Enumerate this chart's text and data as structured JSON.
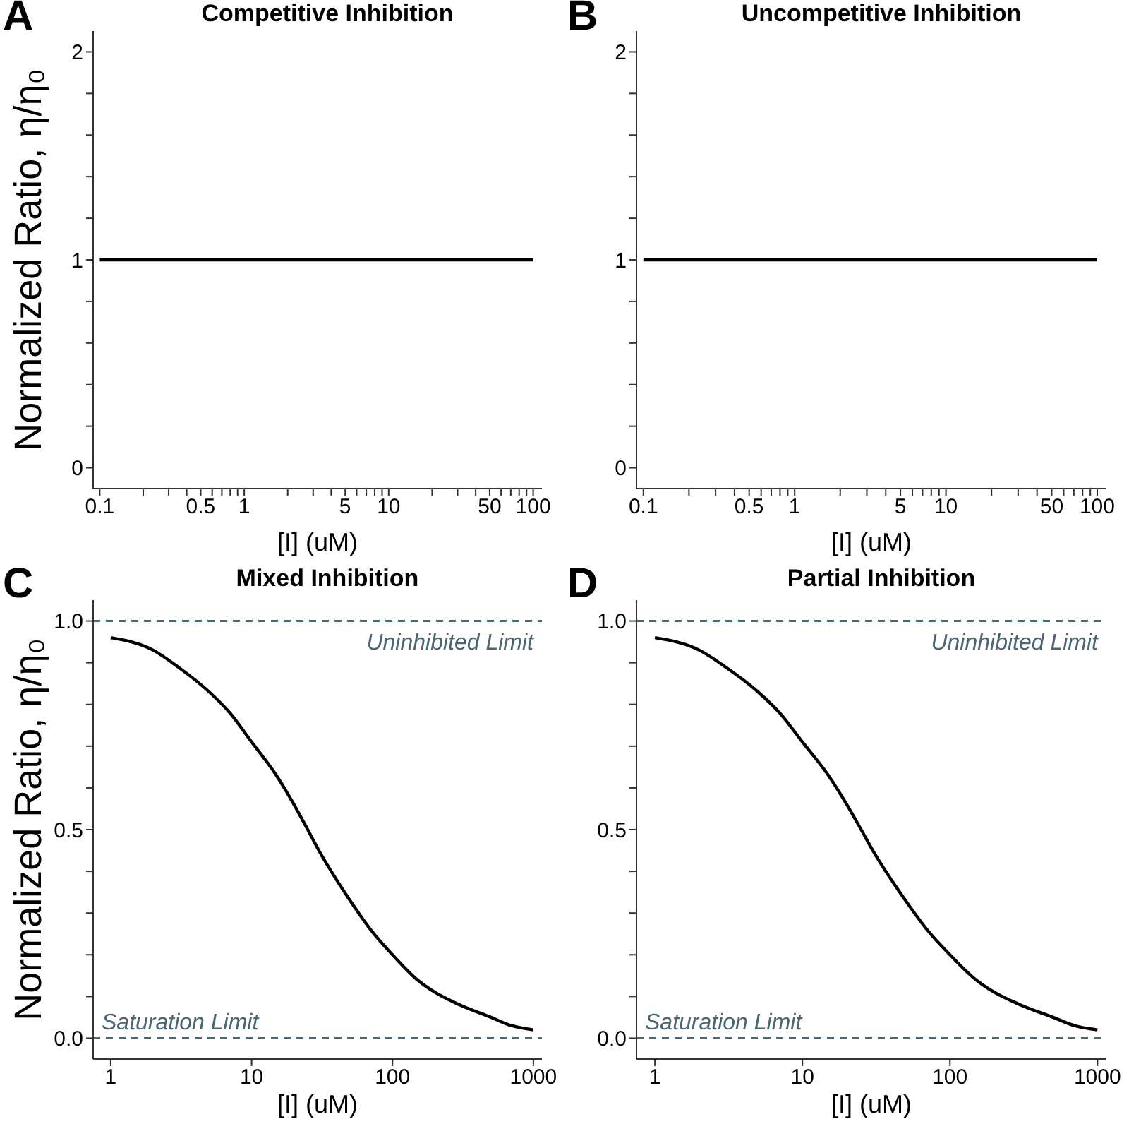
{
  "chart_data": [
    {
      "type": "line",
      "title": "Competitive Inhibition",
      "ylabel": "Normalized Ratio, η/η₀",
      "xlabel": "[I] (uM)",
      "annotations": [
        "A"
      ],
      "log": "x",
      "xlim": [
        0.09,
        115
      ],
      "xticks": [
        0.1,
        {
          "value": 0.2,
          "label": null
        },
        {
          "value": 0.3,
          "label": null
        },
        {
          "value": 0.4,
          "label": null
        },
        0.5,
        {
          "value": 0.6,
          "label": null
        },
        {
          "value": 0.7,
          "label": null
        },
        {
          "value": 0.8,
          "label": null
        },
        {
          "value": 0.9,
          "label": null
        },
        1,
        {
          "value": 2,
          "label": null
        },
        {
          "value": 3,
          "label": null
        },
        {
          "value": 4,
          "label": null
        },
        5,
        {
          "value": 6,
          "label": null
        },
        {
          "value": 7,
          "label": null
        },
        {
          "value": 8,
          "label": null
        },
        {
          "value": 9,
          "label": null
        },
        10,
        {
          "value": 20,
          "label": null
        },
        {
          "value": 30,
          "label": null
        },
        {
          "value": 40,
          "label": null
        },
        50,
        {
          "value": 60,
          "label": null
        },
        {
          "value": 70,
          "label": null
        },
        {
          "value": 80,
          "label": null
        },
        {
          "value": 90,
          "label": null
        },
        100
      ],
      "ylim": [
        -0.1,
        2.1
      ],
      "yticks": [
        0,
        {
          "value": 0.2,
          "label": null
        },
        {
          "value": 0.4,
          "label": null
        },
        {
          "value": 0.6,
          "label": null
        },
        {
          "value": 0.8,
          "label": null
        },
        1,
        {
          "value": 1.2,
          "label": null
        },
        {
          "value": 1.4,
          "label": null
        },
        {
          "value": 1.6,
          "label": null
        },
        {
          "value": 1.8,
          "label": null
        },
        2
      ],
      "series": [
        {
          "color": "#000000",
          "x": [
            0.1,
            1,
            10,
            100
          ],
          "values": [
            1,
            1,
            1,
            1
          ]
        }
      ]
    },
    {
      "type": "line",
      "title": "Uncompetitive Inhibition",
      "xlabel": "[I] (uM)",
      "annotations": [
        "B"
      ],
      "log": "x",
      "xlim": [
        0.09,
        115
      ],
      "xticks": [
        0.1,
        {
          "value": 0.2,
          "label": null
        },
        {
          "value": 0.3,
          "label": null
        },
        {
          "value": 0.4,
          "label": null
        },
        0.5,
        {
          "value": 0.6,
          "label": null
        },
        {
          "value": 0.7,
          "label": null
        },
        {
          "value": 0.8,
          "label": null
        },
        {
          "value": 0.9,
          "label": null
        },
        1,
        {
          "value": 2,
          "label": null
        },
        {
          "value": 3,
          "label": null
        },
        {
          "value": 4,
          "label": null
        },
        5,
        {
          "value": 6,
          "label": null
        },
        {
          "value": 7,
          "label": null
        },
        {
          "value": 8,
          "label": null
        },
        {
          "value": 9,
          "label": null
        },
        10,
        {
          "value": 20,
          "label": null
        },
        {
          "value": 30,
          "label": null
        },
        {
          "value": 40,
          "label": null
        },
        50,
        {
          "value": 60,
          "label": null
        },
        {
          "value": 70,
          "label": null
        },
        {
          "value": 80,
          "label": null
        },
        {
          "value": 90,
          "label": null
        },
        100
      ],
      "ylim": [
        -0.1,
        2.1
      ],
      "yticks": [
        0,
        {
          "value": 0.2,
          "label": null
        },
        {
          "value": 0.4,
          "label": null
        },
        {
          "value": 0.6,
          "label": null
        },
        {
          "value": 0.8,
          "label": null
        },
        1,
        {
          "value": 1.2,
          "label": null
        },
        {
          "value": 1.4,
          "label": null
        },
        {
          "value": 1.6,
          "label": null
        },
        {
          "value": 1.8,
          "label": null
        },
        2
      ],
      "series": [
        {
          "color": "#000000",
          "x": [
            0.1,
            1,
            10,
            100
          ],
          "values": [
            1,
            1,
            1,
            1
          ]
        }
      ]
    },
    {
      "type": "line",
      "title": "Mixed Inhibition",
      "ylabel": "Normalized Ratio, η/η₀",
      "xlabel": "[I] (uM)",
      "annotations": [
        "C"
      ],
      "log": "x",
      "xlim": [
        0.75,
        1150
      ],
      "xticks": [
        1,
        10,
        100,
        1000
      ],
      "ylim": [
        -0.05,
        1.05
      ],
      "yticks": [
        {
          "value": 0,
          "label": "0.0"
        },
        {
          "value": 0.1,
          "label": null
        },
        {
          "value": 0.2,
          "label": null
        },
        {
          "value": 0.3,
          "label": null
        },
        {
          "value": 0.4,
          "label": null
        },
        0.5,
        {
          "value": 0.6,
          "label": null
        },
        {
          "value": 0.7,
          "label": null
        },
        {
          "value": 0.8,
          "label": null
        },
        {
          "value": 0.9,
          "label": null
        },
        {
          "value": 1,
          "label": "1.0"
        }
      ],
      "ref_lines": [
        {
          "axis": "y",
          "value": 1,
          "label": "Uninhibited Limit",
          "color": "#4a6670",
          "line_style": "dashed"
        },
        {
          "axis": "y",
          "value": 0,
          "label": "Saturation Limit",
          "color": "#4a6670",
          "line_style": "dashed"
        }
      ],
      "series": [
        {
          "color": "#000000",
          "x": [
            1,
            2,
            3,
            5,
            7,
            10,
            15,
            20,
            25,
            30,
            40,
            50,
            70,
            100,
            150,
            200,
            300,
            500,
            700,
            1000
          ],
          "values": [
            0.96,
            0.93,
            0.89,
            0.83,
            0.78,
            0.71,
            0.63,
            0.56,
            0.5,
            0.45,
            0.38,
            0.33,
            0.26,
            0.2,
            0.14,
            0.11,
            0.08,
            0.05,
            0.03,
            0.02
          ]
        }
      ]
    },
    {
      "type": "line",
      "title": "Partial Inhibition",
      "xlabel": "[I] (uM)",
      "annotations": [
        "D"
      ],
      "log": "x",
      "xlim": [
        0.75,
        1150
      ],
      "xticks": [
        1,
        10,
        100,
        1000
      ],
      "ylim": [
        -0.05,
        1.05
      ],
      "yticks": [
        {
          "value": 0,
          "label": "0.0"
        },
        {
          "value": 0.1,
          "label": null
        },
        {
          "value": 0.2,
          "label": null
        },
        {
          "value": 0.3,
          "label": null
        },
        {
          "value": 0.4,
          "label": null
        },
        0.5,
        {
          "value": 0.6,
          "label": null
        },
        {
          "value": 0.7,
          "label": null
        },
        {
          "value": 0.8,
          "label": null
        },
        {
          "value": 0.9,
          "label": null
        },
        {
          "value": 1,
          "label": "1.0"
        }
      ],
      "ref_lines": [
        {
          "axis": "y",
          "value": 1,
          "label": "Uninhibited Limit",
          "color": "#4a6670",
          "line_style": "dashed"
        },
        {
          "axis": "y",
          "value": 0,
          "label": "Saturation Limit",
          "color": "#4a6670",
          "line_style": "dashed"
        }
      ],
      "series": [
        {
          "color": "#000000",
          "x": [
            1,
            2,
            3,
            5,
            7,
            10,
            15,
            20,
            25,
            30,
            40,
            50,
            70,
            100,
            150,
            200,
            300,
            500,
            700,
            1000
          ],
          "values": [
            0.96,
            0.93,
            0.89,
            0.83,
            0.78,
            0.71,
            0.63,
            0.56,
            0.5,
            0.45,
            0.38,
            0.33,
            0.26,
            0.2,
            0.14,
            0.11,
            0.08,
            0.05,
            0.03,
            0.02
          ]
        }
      ]
    }
  ]
}
